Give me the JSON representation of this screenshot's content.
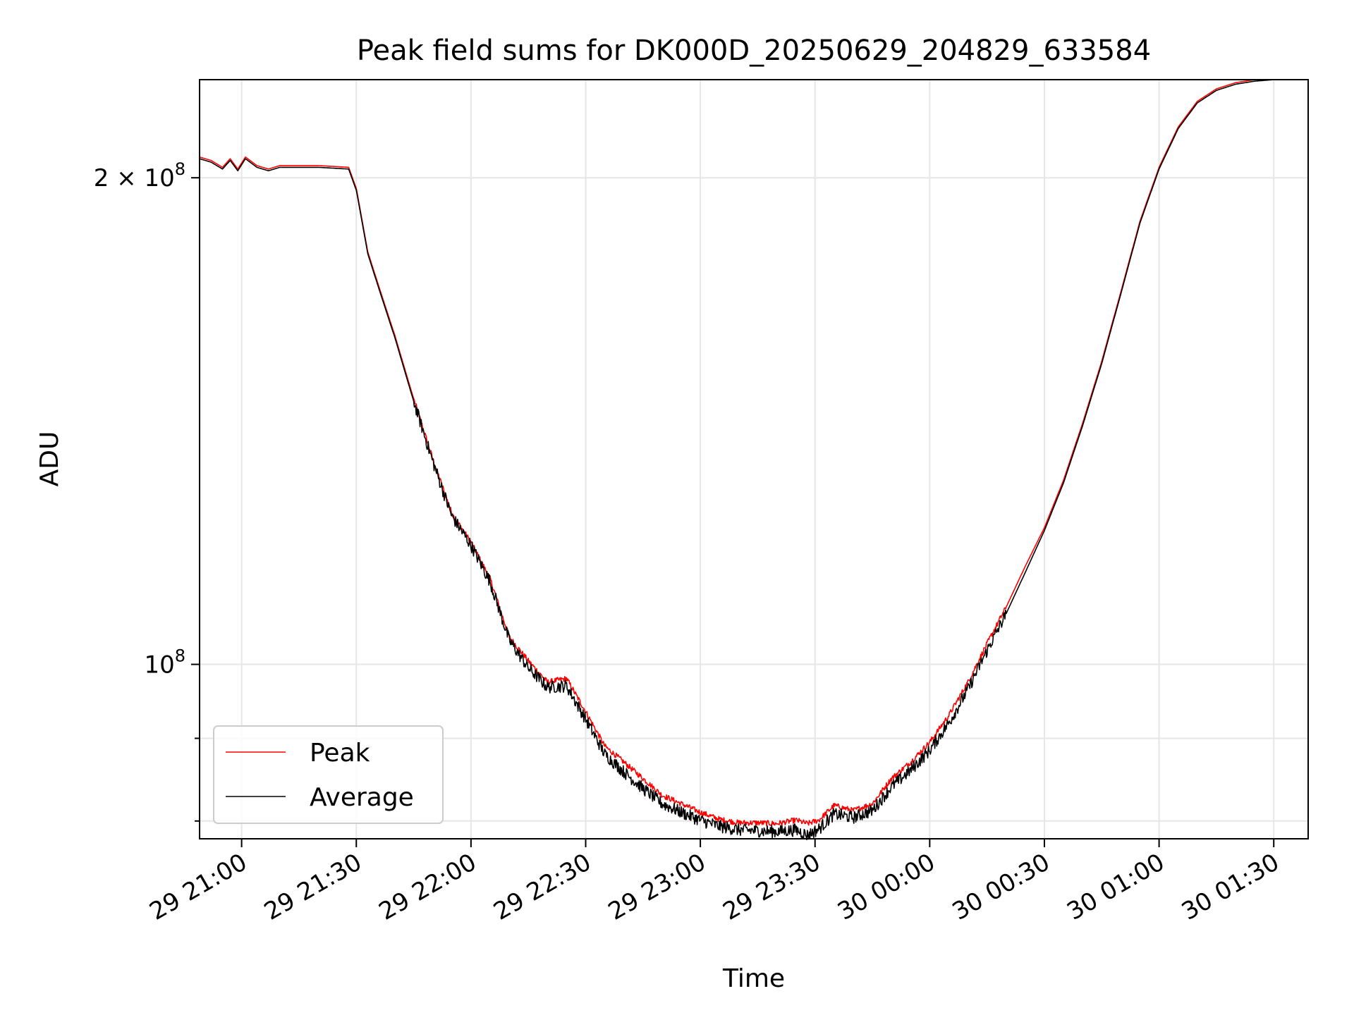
{
  "chart_data": {
    "type": "line",
    "title": "Peak field sums for DK000D_20250629_204829_633584",
    "xlabel": "Time",
    "ylabel": "ADU",
    "x_tick_labels": [
      "29 21:00",
      "29 21:30",
      "29 22:00",
      "29 22:30",
      "29 23:00",
      "29 23:30",
      "30 00:00",
      "30 00:30",
      "30 01:00",
      "30 01:30"
    ],
    "y_tick_labels": [
      {
        "value": 200000000,
        "base": "2 × 10",
        "exp": "8"
      },
      {
        "value": 100000000,
        "base": "10",
        "exp": "8"
      }
    ],
    "y_minor_ticks": [
      90000000,
      80000000
    ],
    "y_scale": "log",
    "xlim": [
      "29 20:49",
      "30 01:39"
    ],
    "ylim": [
      78000000,
      230000000
    ],
    "grid": true,
    "legend_position": "lower left",
    "series": [
      {
        "name": "Peak",
        "color": "#ff0000",
        "points": [
          [
            "29 20:49",
            206000000
          ],
          [
            "29 20:52",
            205000000
          ],
          [
            "29 20:55",
            203000000
          ],
          [
            "29 20:57",
            205500000
          ],
          [
            "29 20:59",
            202500000
          ],
          [
            "29 21:01",
            206000000
          ],
          [
            "29 21:04",
            203500000
          ],
          [
            "29 21:07",
            202500000
          ],
          [
            "29 21:10",
            203500000
          ],
          [
            "29 21:15",
            203500000
          ],
          [
            "29 21:20",
            203500000
          ],
          [
            "29 21:28",
            203000000
          ],
          [
            "29 21:30",
            197000000
          ],
          [
            "29 21:33",
            180000000
          ],
          [
            "29 21:36",
            171000000
          ],
          [
            "29 21:40",
            160000000
          ],
          [
            "29 21:45",
            146000000
          ],
          [
            "29 21:50",
            134000000
          ],
          [
            "29 21:55",
            124000000
          ],
          [
            "29 22:00",
            119000000
          ],
          [
            "29 22:05",
            113000000
          ],
          [
            "29 22:10",
            104000000
          ],
          [
            "29 22:15",
            100500000
          ],
          [
            "29 22:20",
            97500000
          ],
          [
            "29 22:25",
            98000000
          ],
          [
            "29 22:30",
            93500000
          ],
          [
            "29 22:35",
            89000000
          ],
          [
            "29 22:40",
            87000000
          ],
          [
            "29 22:45",
            85000000
          ],
          [
            "29 22:50",
            83000000
          ],
          [
            "29 22:55",
            82000000
          ],
          [
            "29 23:00",
            81000000
          ],
          [
            "29 23:05",
            80200000
          ],
          [
            "29 23:10",
            79800000
          ],
          [
            "29 23:15",
            79800000
          ],
          [
            "29 23:20",
            79700000
          ],
          [
            "29 23:25",
            80100000
          ],
          [
            "29 23:28",
            79700000
          ],
          [
            "29 23:31",
            80100000
          ],
          [
            "29 23:35",
            81800000
          ],
          [
            "29 23:40",
            81200000
          ],
          [
            "29 23:45",
            82000000
          ],
          [
            "29 23:50",
            85000000
          ],
          [
            "29 23:55",
            87000000
          ],
          [
            "30 00:00",
            89500000
          ],
          [
            "30 00:05",
            93000000
          ],
          [
            "30 00:10",
            97500000
          ],
          [
            "30 00:15",
            103000000
          ],
          [
            "30 00:20",
            108500000
          ],
          [
            "30 00:25",
            115000000
          ],
          [
            "30 00:30",
            121500000
          ],
          [
            "30 00:35",
            130000000
          ],
          [
            "30 00:40",
            141000000
          ],
          [
            "30 00:45",
            154000000
          ],
          [
            "30 00:50",
            170000000
          ],
          [
            "30 00:55",
            188000000
          ],
          [
            "30 01:00",
            203000000
          ],
          [
            "30 01:05",
            215000000
          ],
          [
            "30 01:10",
            223000000
          ],
          [
            "30 01:15",
            227000000
          ],
          [
            "30 01:20",
            229000000
          ],
          [
            "30 01:25",
            230000000
          ],
          [
            "30 01:30",
            230000000
          ],
          [
            "30 01:39",
            230000000
          ]
        ]
      },
      {
        "name": "Average",
        "color": "#000000",
        "points": [
          [
            "29 20:49",
            205500000
          ],
          [
            "29 20:52",
            204500000
          ],
          [
            "29 20:55",
            202500000
          ],
          [
            "29 20:57",
            205000000
          ],
          [
            "29 20:59",
            202000000
          ],
          [
            "29 21:01",
            205500000
          ],
          [
            "29 21:04",
            203000000
          ],
          [
            "29 21:07",
            202000000
          ],
          [
            "29 21:10",
            203000000
          ],
          [
            "29 21:15",
            203000000
          ],
          [
            "29 21:20",
            203000000
          ],
          [
            "29 21:28",
            202500000
          ],
          [
            "29 21:30",
            196500000
          ],
          [
            "29 21:33",
            179500000
          ],
          [
            "29 21:36",
            170500000
          ],
          [
            "29 21:40",
            159500000
          ],
          [
            "29 21:45",
            145500000
          ],
          [
            "29 21:50",
            133500000
          ],
          [
            "29 21:55",
            123500000
          ],
          [
            "29 22:00",
            118500000
          ],
          [
            "29 22:05",
            112500000
          ],
          [
            "29 22:10",
            103500000
          ],
          [
            "29 22:15",
            99500000
          ],
          [
            "29 22:20",
            96800000
          ],
          [
            "29 22:25",
            97000000
          ],
          [
            "29 22:30",
            92500000
          ],
          [
            "29 22:35",
            88000000
          ],
          [
            "29 22:40",
            85800000
          ],
          [
            "29 22:45",
            83800000
          ],
          [
            "29 22:50",
            82000000
          ],
          [
            "29 22:55",
            81000000
          ],
          [
            "29 23:00",
            80100000
          ],
          [
            "29 23:05",
            79400000
          ],
          [
            "29 23:10",
            79000000
          ],
          [
            "29 23:15",
            78900000
          ],
          [
            "29 23:20",
            78800000
          ],
          [
            "29 23:25",
            79000000
          ],
          [
            "29 23:28",
            78400000
          ],
          [
            "29 23:31",
            79100000
          ],
          [
            "29 23:35",
            80800000
          ],
          [
            "29 23:40",
            80400000
          ],
          [
            "29 23:45",
            81200000
          ],
          [
            "29 23:50",
            84000000
          ],
          [
            "29 23:55",
            86000000
          ],
          [
            "30 00:00",
            88500000
          ],
          [
            "30 00:05",
            92000000
          ],
          [
            "30 00:10",
            96500000
          ],
          [
            "30 00:15",
            102000000
          ],
          [
            "30 00:20",
            107500000
          ],
          [
            "30 00:25",
            114000000
          ],
          [
            "30 00:30",
            121000000
          ],
          [
            "30 00:35",
            129500000
          ],
          [
            "30 00:40",
            140500000
          ],
          [
            "30 00:45",
            153500000
          ],
          [
            "30 00:50",
            169500000
          ],
          [
            "30 00:55",
            187500000
          ],
          [
            "30 01:00",
            202500000
          ],
          [
            "30 01:05",
            214500000
          ],
          [
            "30 01:10",
            222500000
          ],
          [
            "30 01:15",
            226500000
          ],
          [
            "30 01:20",
            228500000
          ],
          [
            "30 01:25",
            229500000
          ],
          [
            "30 01:30",
            230000000
          ],
          [
            "30 01:39",
            230000000
          ]
        ]
      }
    ]
  }
}
